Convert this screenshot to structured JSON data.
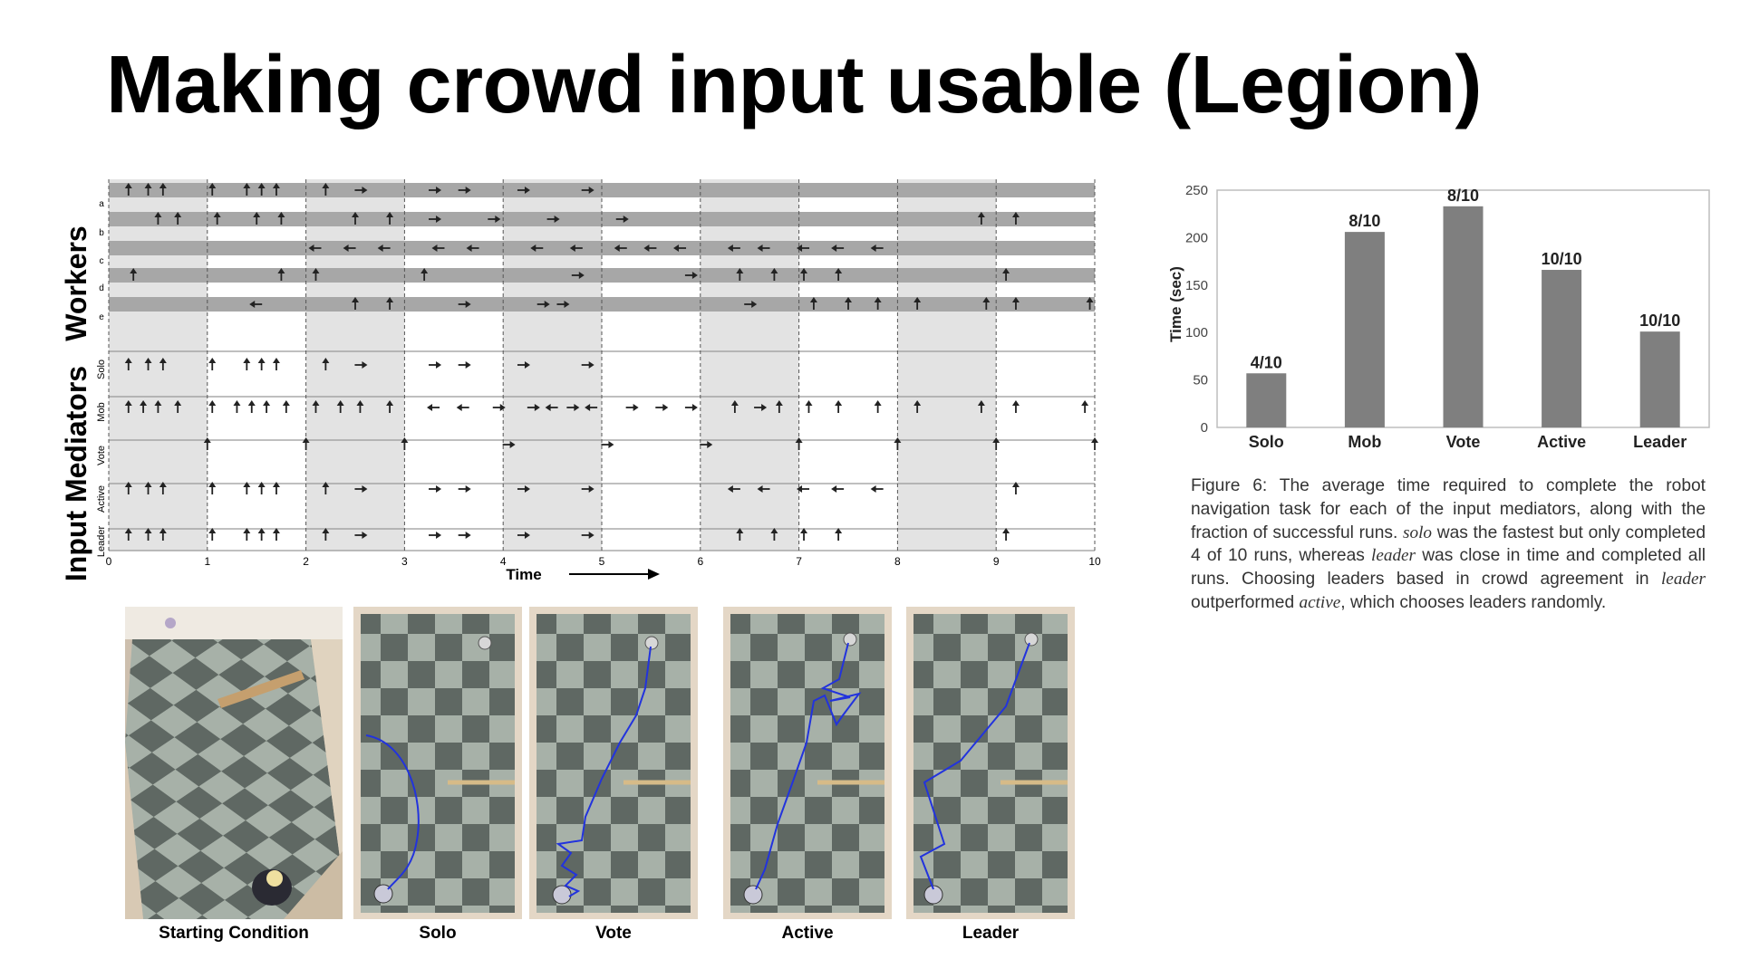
{
  "slide": {
    "title": "Making crowd input usable (Legion)"
  },
  "timeline": {
    "group_labels": [
      "Workers",
      "Input Mediators"
    ],
    "worker_rows": [
      "a",
      "b",
      "c",
      "d",
      "e"
    ],
    "mediator_rows": [
      "Solo",
      "Mob",
      "Vote",
      "Active",
      "Leader"
    ],
    "tick_labels": [
      "0",
      "1",
      "2",
      "3",
      "4",
      "5",
      "6",
      "7",
      "8",
      "9",
      "10"
    ],
    "axis_label": "Time"
  },
  "chart_data": {
    "type": "bar",
    "categories": [
      "Solo",
      "Mob",
      "Vote",
      "Active",
      "Leader"
    ],
    "values": [
      57,
      206,
      233,
      166,
      101
    ],
    "data_labels": [
      "4/10",
      "8/10",
      "8/10",
      "10/10",
      "10/10"
    ],
    "ylabel": "Time (sec)",
    "ylim": [
      0,
      250
    ],
    "yticks": [
      "0",
      "50",
      "100",
      "150",
      "200",
      "250"
    ],
    "grid": false,
    "bar_color": "#7f7f7f"
  },
  "caption": {
    "p1": "Figure 6: The average time required to complete the robot navigation task for each of the input mediators, along with the fraction of successful runs. ",
    "i1": "solo",
    "p2": " was the fastest but only completed 4 of 10 runs, whereas ",
    "i2": "leader",
    "p3": " was close in time and completed all runs. Choosing leaders based in crowd agreement in ",
    "i3": "leader",
    "p4": " outperformed ",
    "i4": "active",
    "p5": ", which chooses leaders randomly."
  },
  "photos": {
    "labels": [
      "Starting Condition",
      "Solo",
      "Vote",
      "Active",
      "Leader"
    ]
  },
  "colors": {
    "path": "#2233dd",
    "floor_light": "#a7b1a8",
    "floor_dark": "#5f6863",
    "band_shade": "#e3e3e3",
    "worker_bar": "#a7a7a7"
  }
}
